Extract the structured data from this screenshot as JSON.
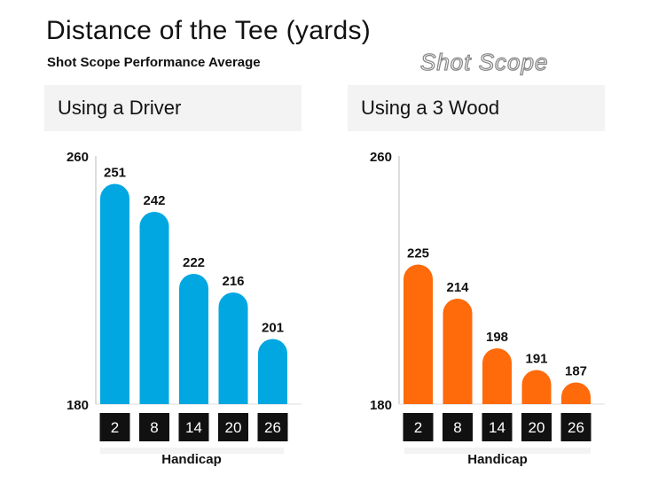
{
  "header": {
    "title": "Distance of the Tee (yards)",
    "subtitle": "Shot Scope Performance Average",
    "logo_text": "Shot Scope"
  },
  "colors": {
    "driver": "#00a7e1",
    "wood": "#ff6a0a",
    "tick_box": "#111111"
  },
  "chart_data": [
    {
      "type": "bar",
      "title": "Using a Driver",
      "xlabel": "Handicap",
      "ylabel": "",
      "categories": [
        "2",
        "8",
        "14",
        "20",
        "26"
      ],
      "values": [
        251,
        242,
        222,
        216,
        201
      ],
      "ylim": [
        180,
        260
      ],
      "yticks": [
        "260",
        "180"
      ],
      "grid": false,
      "color": "#00a7e1"
    },
    {
      "type": "bar",
      "title": "Using a 3 Wood",
      "xlabel": "Handicap",
      "ylabel": "",
      "categories": [
        "2",
        "8",
        "14",
        "20",
        "26"
      ],
      "values": [
        225,
        214,
        198,
        191,
        187
      ],
      "ylim": [
        180,
        260
      ],
      "yticks": [
        "260",
        "180"
      ],
      "grid": false,
      "color": "#ff6a0a"
    }
  ]
}
